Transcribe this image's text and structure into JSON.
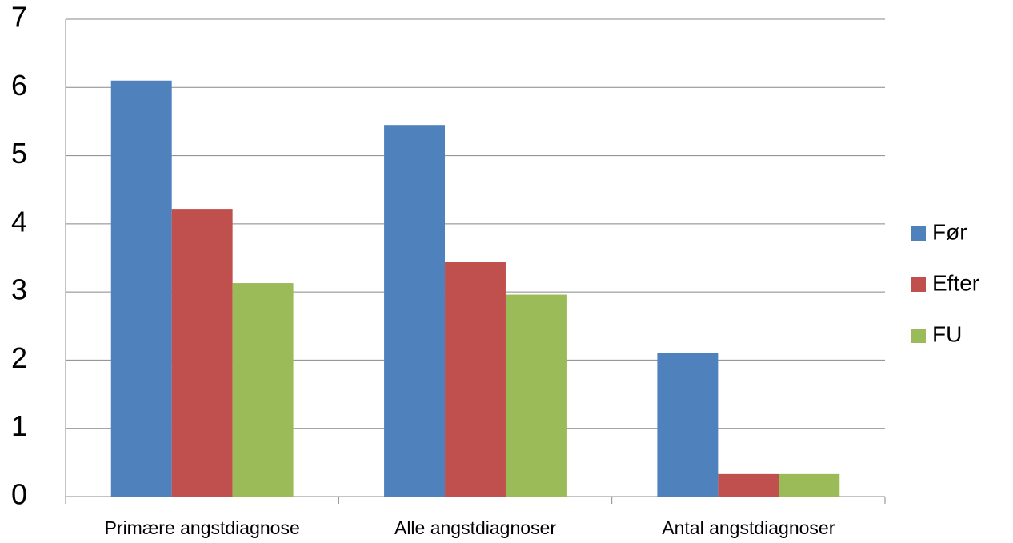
{
  "chart_data": {
    "type": "bar",
    "categories": [
      "Primære angstdiagnose",
      "Alle angstdiagnoser",
      "Antal angstdiagnoser"
    ],
    "series": [
      {
        "name": "Før",
        "color": "#4f81bd",
        "values": [
          6.1,
          5.45,
          2.1
        ]
      },
      {
        "name": "Efter",
        "color": "#c0504d",
        "values": [
          4.22,
          3.44,
          0.33
        ]
      },
      {
        "name": "FU",
        "color": "#9bbb59",
        "values": [
          3.13,
          2.96,
          0.33
        ]
      }
    ],
    "ylim": [
      0,
      7
    ],
    "yticks": [
      0,
      1,
      2,
      3,
      4,
      5,
      6,
      7
    ],
    "grid": true,
    "legend": "right"
  }
}
